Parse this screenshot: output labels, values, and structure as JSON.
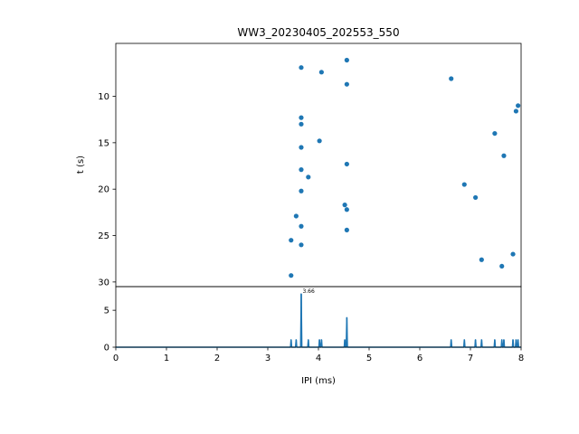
{
  "chart_data": [
    {
      "type": "scatter",
      "title": "WW3_20230405_202553_550",
      "ylabel": "t (s)",
      "xlim": [
        0,
        8
      ],
      "ylim": [
        30.5,
        4.3
      ],
      "y_inverted": true,
      "yticks": [
        "10",
        "15",
        "20",
        "25",
        "30"
      ],
      "color": "#1f77b4",
      "points": [
        {
          "x": 3.66,
          "y": 6.9
        },
        {
          "x": 4.06,
          "y": 7.4
        },
        {
          "x": 4.56,
          "y": 6.1
        },
        {
          "x": 4.56,
          "y": 8.7
        },
        {
          "x": 6.62,
          "y": 8.1
        },
        {
          "x": 7.94,
          "y": 11.0
        },
        {
          "x": 7.9,
          "y": 11.6
        },
        {
          "x": 3.66,
          "y": 12.3
        },
        {
          "x": 3.66,
          "y": 13.0
        },
        {
          "x": 7.48,
          "y": 14.0
        },
        {
          "x": 4.02,
          "y": 14.8
        },
        {
          "x": 3.66,
          "y": 15.5
        },
        {
          "x": 7.66,
          "y": 16.4
        },
        {
          "x": 4.56,
          "y": 17.3
        },
        {
          "x": 3.66,
          "y": 17.9
        },
        {
          "x": 3.8,
          "y": 18.7
        },
        {
          "x": 6.88,
          "y": 19.5
        },
        {
          "x": 3.66,
          "y": 20.2
        },
        {
          "x": 7.1,
          "y": 20.9
        },
        {
          "x": 4.52,
          "y": 21.7
        },
        {
          "x": 4.56,
          "y": 22.2
        },
        {
          "x": 3.56,
          "y": 22.9
        },
        {
          "x": 3.66,
          "y": 24.0
        },
        {
          "x": 4.56,
          "y": 24.4
        },
        {
          "x": 3.46,
          "y": 25.5
        },
        {
          "x": 3.66,
          "y": 26.0
        },
        {
          "x": 7.84,
          "y": 27.0
        },
        {
          "x": 7.22,
          "y": 27.6
        },
        {
          "x": 7.62,
          "y": 28.3
        },
        {
          "x": 3.46,
          "y": 29.3
        }
      ]
    },
    {
      "type": "line",
      "xlabel": "IPI (ms)",
      "xlim": [
        0,
        8
      ],
      "ylim": [
        0,
        8.2
      ],
      "xticks": [
        "0",
        "1",
        "2",
        "3",
        "4",
        "5",
        "6",
        "7",
        "8"
      ],
      "yticks": [
        "0",
        "5"
      ],
      "color": "#1f77b4",
      "peaks": [
        {
          "x": 3.46,
          "y": 1.0
        },
        {
          "x": 3.56,
          "y": 1.0
        },
        {
          "x": 3.66,
          "y": 7.2
        },
        {
          "x": 3.8,
          "y": 1.0
        },
        {
          "x": 4.02,
          "y": 1.0
        },
        {
          "x": 4.06,
          "y": 1.0
        },
        {
          "x": 4.52,
          "y": 1.0
        },
        {
          "x": 4.56,
          "y": 4.0
        },
        {
          "x": 6.62,
          "y": 1.0
        },
        {
          "x": 6.88,
          "y": 1.0
        },
        {
          "x": 7.1,
          "y": 1.0
        },
        {
          "x": 7.22,
          "y": 1.0
        },
        {
          "x": 7.48,
          "y": 1.0
        },
        {
          "x": 7.62,
          "y": 1.0
        },
        {
          "x": 7.66,
          "y": 1.0
        },
        {
          "x": 7.84,
          "y": 1.0
        },
        {
          "x": 7.9,
          "y": 1.0
        },
        {
          "x": 7.94,
          "y": 1.0
        }
      ],
      "annotation": {
        "text": "3.66",
        "x": 3.66,
        "y": 7.2
      }
    }
  ]
}
